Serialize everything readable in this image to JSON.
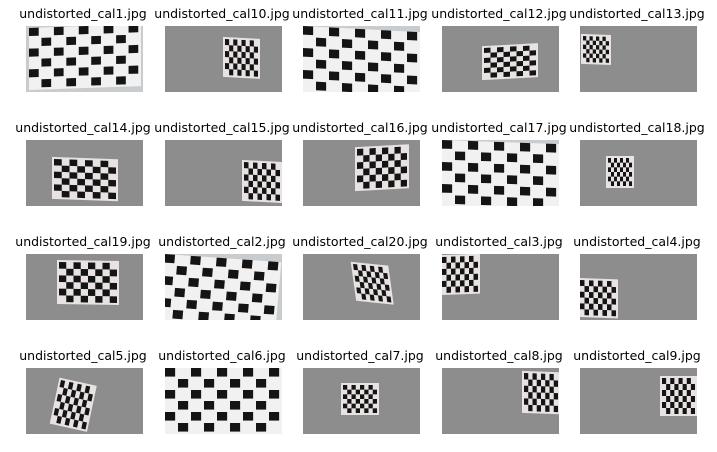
{
  "figure": {
    "images": [
      {
        "filename": "undistorted_cal1.jpg",
        "board": "closeup-tilted"
      },
      {
        "filename": "undistorted_cal10.jpg",
        "board": "small-center-right"
      },
      {
        "filename": "undistorted_cal11.jpg",
        "board": "closeup-curved"
      },
      {
        "filename": "undistorted_cal12.jpg",
        "board": "small-bottom-right"
      },
      {
        "filename": "undistorted_cal13.jpg",
        "board": "small-left"
      },
      {
        "filename": "undistorted_cal14.jpg",
        "board": "medium-center-left"
      },
      {
        "filename": "undistorted_cal15.jpg",
        "board": "small-right"
      },
      {
        "filename": "undistorted_cal16.jpg",
        "board": "medium-center-right"
      },
      {
        "filename": "undistorted_cal17.jpg",
        "board": "closeup-perspective"
      },
      {
        "filename": "undistorted_cal18.jpg",
        "board": "small-center"
      },
      {
        "filename": "undistorted_cal19.jpg",
        "board": "medium-center"
      },
      {
        "filename": "undistorted_cal2.jpg",
        "board": "closeup-skewed"
      },
      {
        "filename": "undistorted_cal20.jpg",
        "board": "small-rotated-center"
      },
      {
        "filename": "undistorted_cal3.jpg",
        "board": "medium-top-left"
      },
      {
        "filename": "undistorted_cal4.jpg",
        "board": "medium-bottom-left"
      },
      {
        "filename": "undistorted_cal5.jpg",
        "board": "rotated-left"
      },
      {
        "filename": "undistorted_cal6.jpg",
        "board": "closeup-full"
      },
      {
        "filename": "undistorted_cal7.jpg",
        "board": "small-center-low"
      },
      {
        "filename": "undistorted_cal8.jpg",
        "board": "small-top-right"
      },
      {
        "filename": "undistorted_cal9.jpg",
        "board": "small-right-center"
      }
    ],
    "colors": {
      "wall": "#8d8d8d",
      "bright_wall": "#c8ccce",
      "dark_square": "#141414",
      "light_square": "#f1f1f1",
      "paper": "#e8e2e2"
    }
  }
}
